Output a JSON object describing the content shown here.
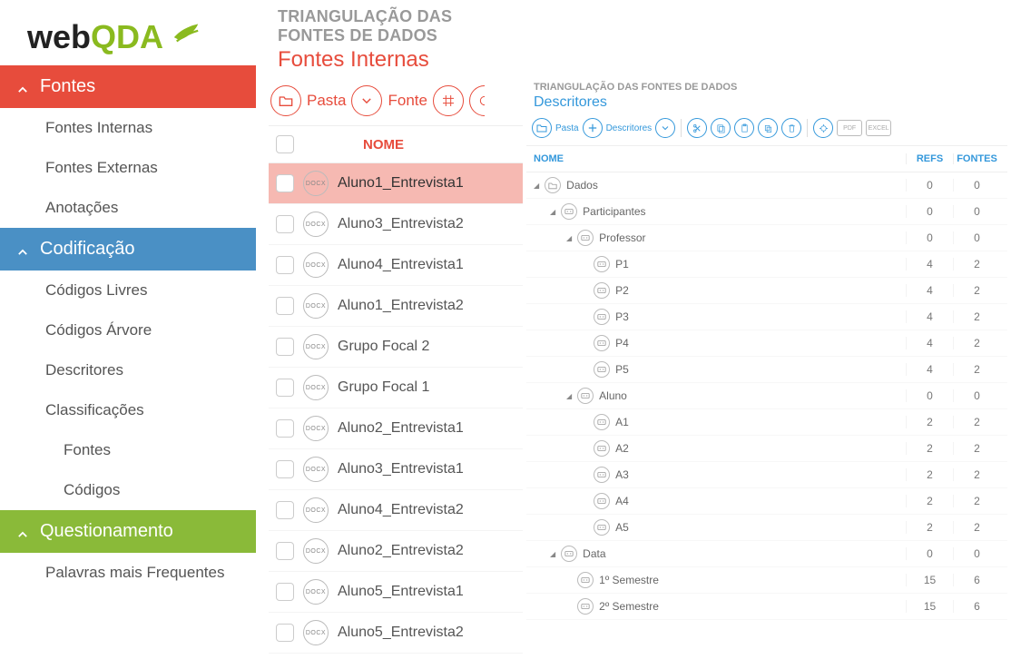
{
  "colors": {
    "red": "#e74c3c",
    "blue": "#4a90c5",
    "green": "#8aba39",
    "lightblue": "#3498db",
    "selected_row": "#f6b9b2"
  },
  "logo": {
    "part1": "web",
    "part2": "QDA"
  },
  "sidebar": {
    "sections": [
      {
        "label": "Fontes",
        "header_color": "red",
        "items": [
          {
            "label": "Fontes Internas"
          },
          {
            "label": "Fontes Externas"
          },
          {
            "label": "Anotações"
          }
        ]
      },
      {
        "label": "Codificação",
        "header_color": "blue",
        "items": [
          {
            "label": "Códigos Livres"
          },
          {
            "label": "Códigos Árvore"
          },
          {
            "label": "Descritores"
          },
          {
            "label": "Classificações"
          },
          {
            "label": "Fontes",
            "indent": true
          },
          {
            "label": "Códigos",
            "indent": true
          }
        ]
      },
      {
        "label": "Questionamento",
        "header_color": "green",
        "items": [
          {
            "label": "Palavras mais Frequentes"
          }
        ]
      }
    ]
  },
  "center": {
    "title": "TRIANGULAÇÃO DAS FONTES DE DADOS",
    "subtitle": "Fontes Internas",
    "toolbar": {
      "pasta": "Pasta",
      "fonte": "Fonte"
    },
    "column_header": "NOME",
    "file_badge": "DOCX",
    "rows": [
      {
        "name": "Aluno1_Entrevista1",
        "selected": true
      },
      {
        "name": "Aluno3_Entrevista2"
      },
      {
        "name": "Aluno4_Entrevista1"
      },
      {
        "name": "Aluno1_Entrevista2"
      },
      {
        "name": "Grupo Focal 2"
      },
      {
        "name": "Grupo Focal 1"
      },
      {
        "name": "Aluno2_Entrevista1"
      },
      {
        "name": "Aluno3_Entrevista1"
      },
      {
        "name": "Aluno4_Entrevista2"
      },
      {
        "name": "Aluno2_Entrevista2"
      },
      {
        "name": "Aluno5_Entrevista1"
      },
      {
        "name": "Aluno5_Entrevista2"
      }
    ]
  },
  "right": {
    "title": "TRIANGULAÇÃO DAS FONTES DE DADOS",
    "subtitle": "Descritores",
    "toolbar": {
      "pasta": "Pasta",
      "descritores": "Descritores",
      "pdf": "PDF",
      "excel": "EXCEL"
    },
    "columns": {
      "name": "NOME",
      "refs": "REFS",
      "fontes": "FONTES"
    },
    "tree": [
      {
        "level": 0,
        "icon": "folder",
        "expandable": true,
        "label": "Dados",
        "refs": 0,
        "fontes": 0
      },
      {
        "level": 1,
        "icon": "code",
        "expandable": true,
        "label": "Participantes",
        "refs": 0,
        "fontes": 0
      },
      {
        "level": 2,
        "icon": "code",
        "expandable": true,
        "label": "Professor",
        "refs": 0,
        "fontes": 0
      },
      {
        "level": 3,
        "icon": "code",
        "label": "P1",
        "refs": 4,
        "fontes": 2
      },
      {
        "level": 3,
        "icon": "code",
        "label": "P2",
        "refs": 4,
        "fontes": 2
      },
      {
        "level": 3,
        "icon": "code",
        "label": "P3",
        "refs": 4,
        "fontes": 2
      },
      {
        "level": 3,
        "icon": "code",
        "label": "P4",
        "refs": 4,
        "fontes": 2
      },
      {
        "level": 3,
        "icon": "code",
        "label": "P5",
        "refs": 4,
        "fontes": 2
      },
      {
        "level": 2,
        "icon": "code",
        "expandable": true,
        "label": "Aluno",
        "refs": 0,
        "fontes": 0
      },
      {
        "level": 3,
        "icon": "code",
        "label": "A1",
        "refs": 2,
        "fontes": 2
      },
      {
        "level": 3,
        "icon": "code",
        "label": "A2",
        "refs": 2,
        "fontes": 2
      },
      {
        "level": 3,
        "icon": "code",
        "label": "A3",
        "refs": 2,
        "fontes": 2
      },
      {
        "level": 3,
        "icon": "code",
        "label": "A4",
        "refs": 2,
        "fontes": 2
      },
      {
        "level": 3,
        "icon": "code",
        "label": "A5",
        "refs": 2,
        "fontes": 2
      },
      {
        "level": 1,
        "icon": "code",
        "expandable": true,
        "label": "Data",
        "refs": 0,
        "fontes": 0
      },
      {
        "level": 2,
        "icon": "code",
        "label": "1º Semestre",
        "refs": 15,
        "fontes": 6
      },
      {
        "level": 2,
        "icon": "code",
        "label": "2º Semestre",
        "refs": 15,
        "fontes": 6
      }
    ]
  }
}
